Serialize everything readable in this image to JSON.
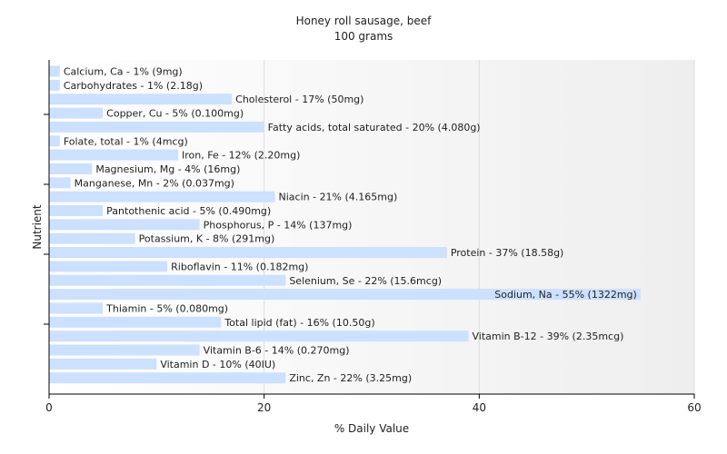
{
  "chart_data": {
    "type": "bar",
    "orientation": "horizontal",
    "title": "Honey roll sausage, beef",
    "subtitle": "100 grams",
    "xlabel": "% Daily Value",
    "ylabel": "Nutrient",
    "xlim": [
      0,
      60
    ],
    "xticks": [
      0,
      20,
      40,
      60
    ],
    "grid": true,
    "bar_color": "#cce0ff",
    "categories": [
      "Calcium, Ca",
      "Carbohydrates",
      "Cholesterol",
      "Copper, Cu",
      "Fatty acids, total saturated",
      "Folate, total",
      "Iron, Fe",
      "Magnesium, Mg",
      "Manganese, Mn",
      "Niacin",
      "Pantothenic acid",
      "Phosphorus, P",
      "Potassium, K",
      "Protein",
      "Riboflavin",
      "Selenium, Se",
      "Sodium, Na",
      "Thiamin",
      "Total lipid (fat)",
      "Vitamin B-12",
      "Vitamin B-6",
      "Vitamin D",
      "Zinc, Zn"
    ],
    "values": [
      1,
      1,
      17,
      5,
      20,
      1,
      12,
      4,
      2,
      21,
      5,
      14,
      8,
      37,
      11,
      22,
      55,
      5,
      16,
      39,
      14,
      10,
      22
    ],
    "labels": [
      "Calcium, Ca - 1% (9mg)",
      "Carbohydrates - 1% (2.18g)",
      "Cholesterol - 17% (50mg)",
      "Copper, Cu - 5% (0.100mg)",
      "Fatty acids, total saturated - 20% (4.080g)",
      "Folate, total - 1% (4mcg)",
      "Iron, Fe - 12% (2.20mg)",
      "Magnesium, Mg - 4% (16mg)",
      "Manganese, Mn - 2% (0.037mg)",
      "Niacin - 21% (4.165mg)",
      "Pantothenic acid - 5% (0.490mg)",
      "Phosphorus, P - 14% (137mg)",
      "Potassium, K - 8% (291mg)",
      "Protein - 37% (18.58g)",
      "Riboflavin - 11% (0.182mg)",
      "Selenium, Se - 22% (15.6mcg)",
      "Sodium, Na - 55% (1322mg)",
      "Thiamin - 5% (0.080mg)",
      "Total lipid (fat) - 16% (10.50g)",
      "Vitamin B-12 - 39% (2.35mcg)",
      "Vitamin B-6 - 14% (0.270mg)",
      "Vitamin D - 10% (40IU)",
      "Zinc, Zn - 22% (3.25mg)"
    ]
  }
}
